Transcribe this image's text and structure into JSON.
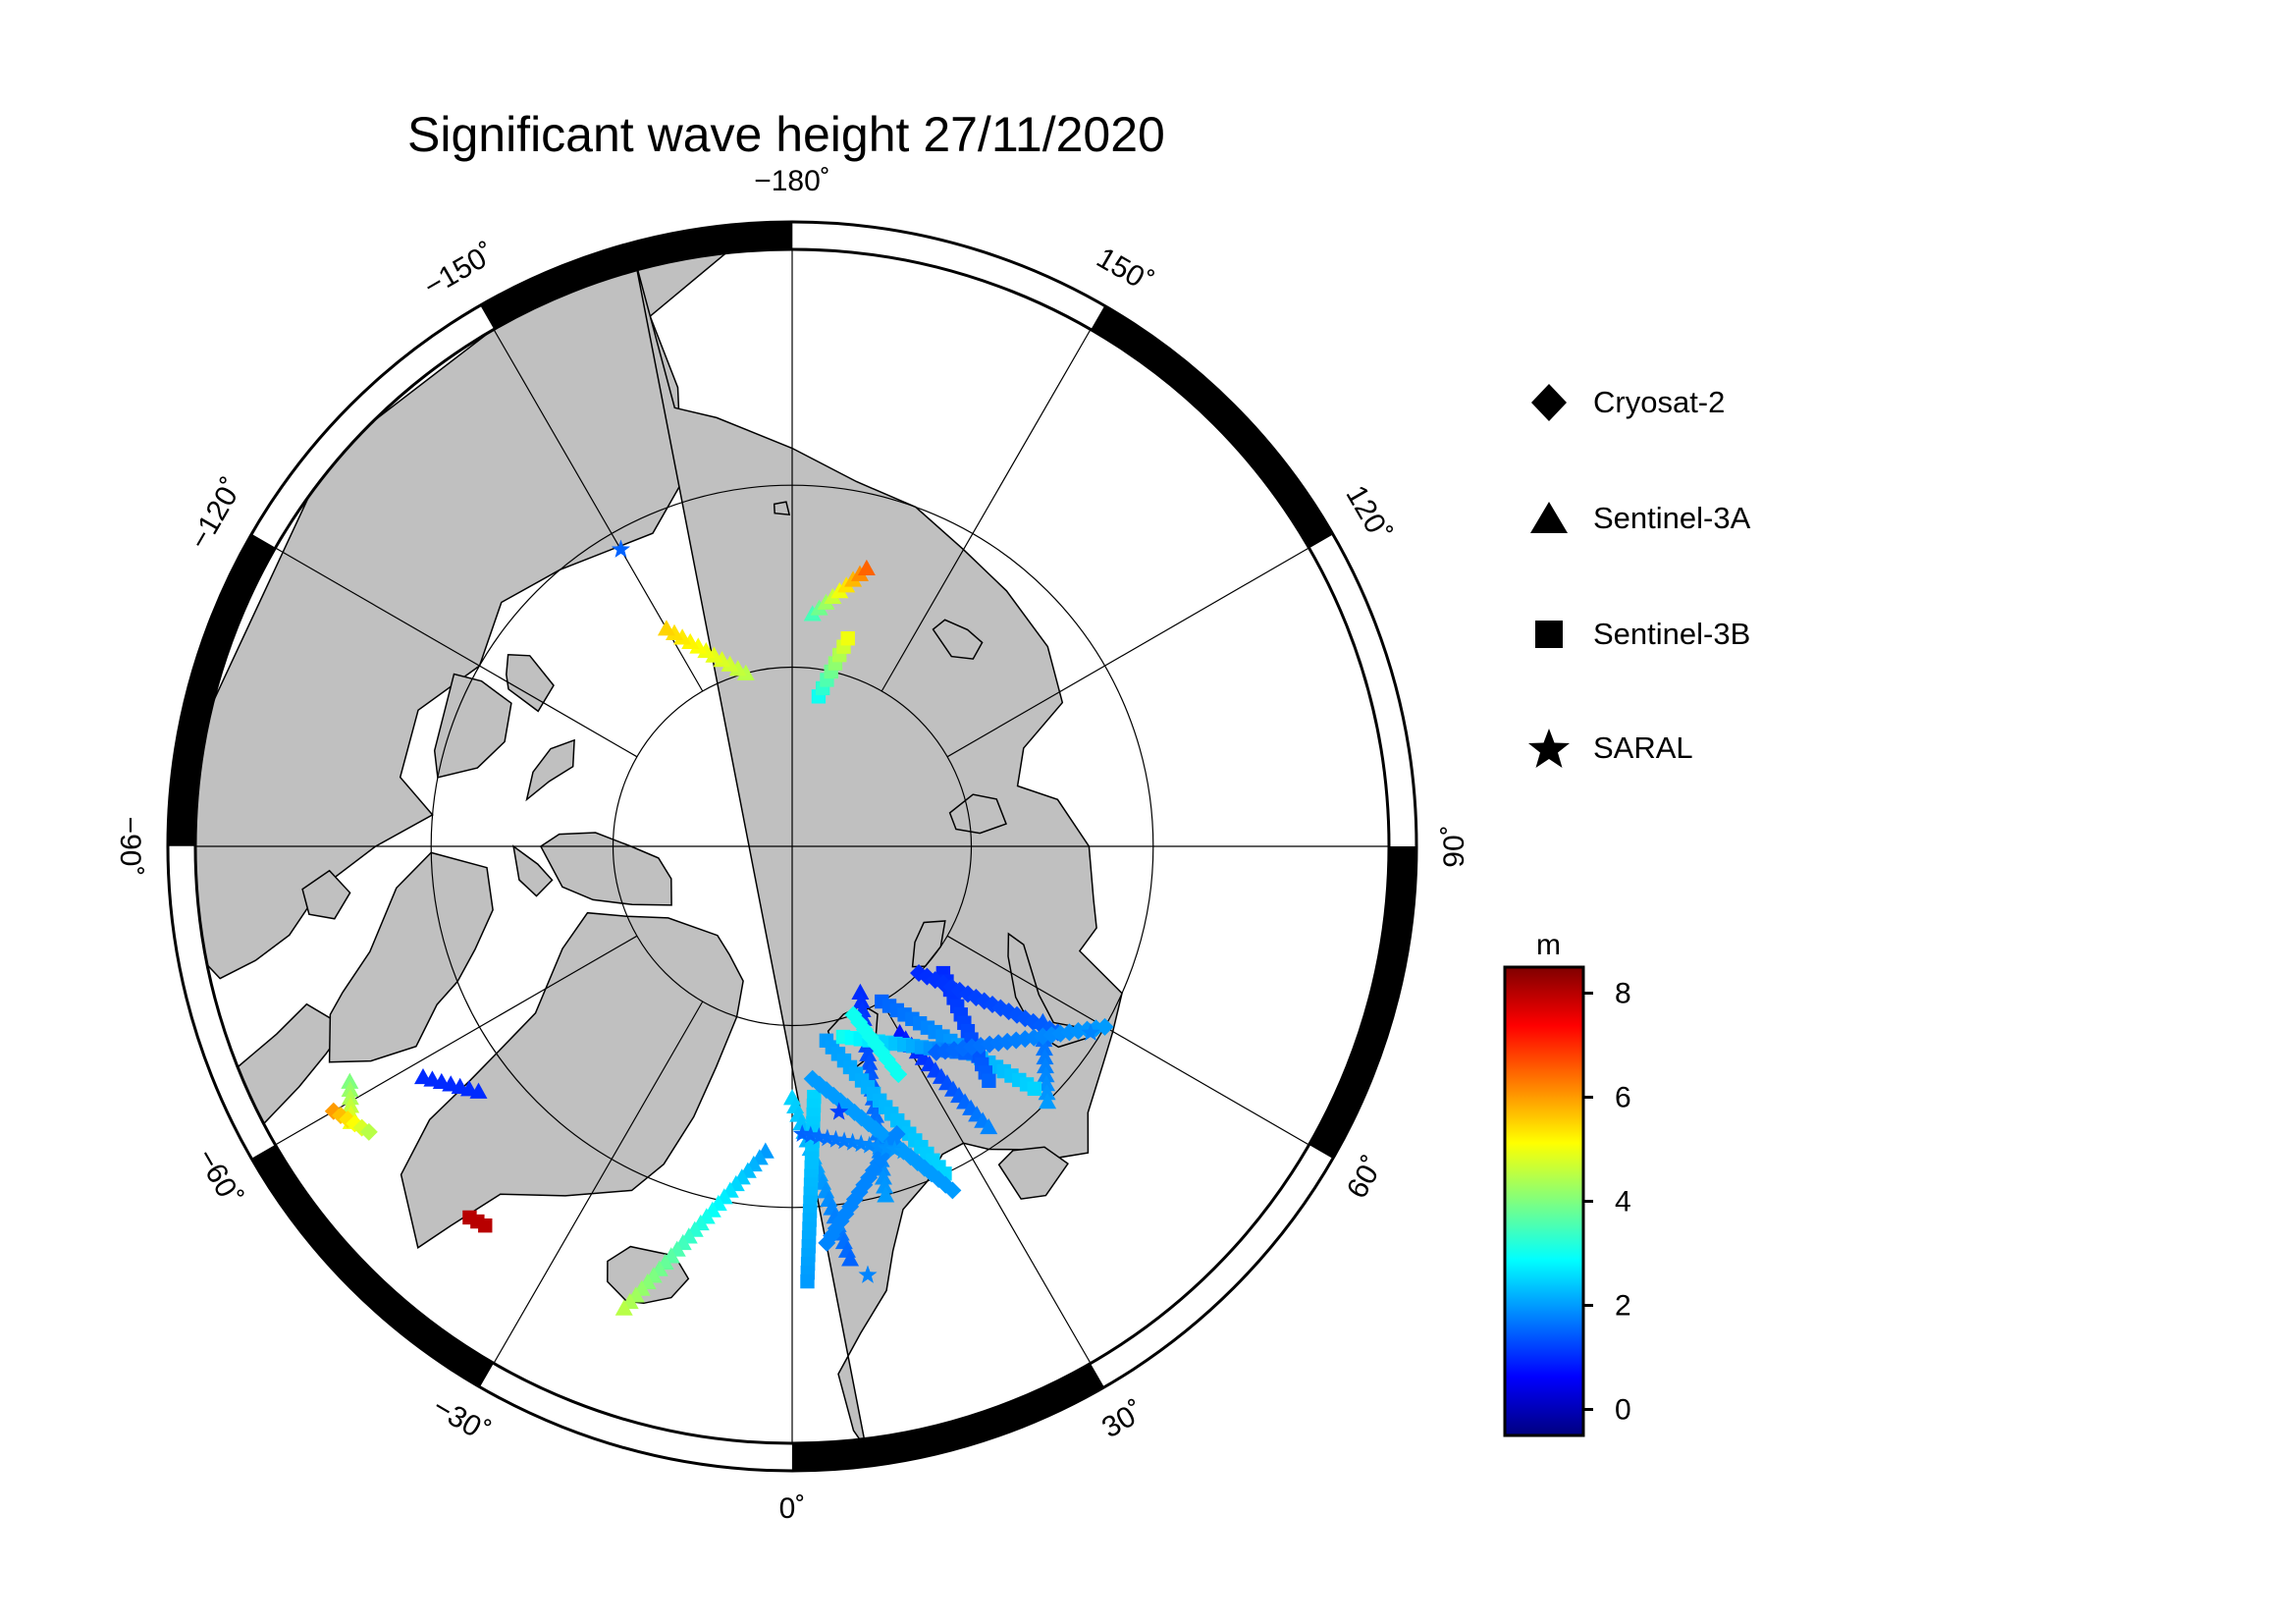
{
  "title": "Significant wave height 27/11/2020",
  "longitude_labels": [
    {
      "deg": 180,
      "text": "−180˚"
    },
    {
      "deg": 150,
      "text": "150˚"
    },
    {
      "deg": 120,
      "text": "120˚"
    },
    {
      "deg": 90,
      "text": "90˚"
    },
    {
      "deg": 60,
      "text": "60˚"
    },
    {
      "deg": 30,
      "text": "30˚"
    },
    {
      "deg": 0,
      "text": "0˚"
    },
    {
      "deg": -30,
      "text": "−30˚"
    },
    {
      "deg": -60,
      "text": "−60˚"
    },
    {
      "deg": -90,
      "text": "−90˚"
    },
    {
      "deg": -120,
      "text": "−120˚"
    },
    {
      "deg": -150,
      "text": "−150˚"
    }
  ],
  "legend": {
    "items": [
      {
        "label": "Cryosat-2",
        "marker": "diamond-icon"
      },
      {
        "label": "Sentinel-3A",
        "marker": "triangle-icon"
      },
      {
        "label": "Sentinel-3B",
        "marker": "square-icon"
      },
      {
        "label": "SARAL",
        "marker": "star-icon"
      }
    ]
  },
  "colorbar": {
    "unit": "m",
    "min": -0.5,
    "max": 8.5,
    "ticks": [
      0,
      2,
      4,
      6,
      8
    ],
    "tick_labels": [
      "0",
      "2",
      "4",
      "6",
      "8"
    ],
    "colors": [
      "#00007f",
      "#0000ff",
      "#007fff",
      "#00ffff",
      "#7fff7f",
      "#ffff00",
      "#ff7f00",
      "#ff0000",
      "#7f0000"
    ]
  },
  "chart_data": {
    "type": "scatter",
    "projection": "north polar stereographic",
    "map_colors": {
      "land": "#c0c0c0",
      "ocean": "#ffffff",
      "coastline": "#000000"
    },
    "latitude_circles_deg": [
      80,
      70
    ],
    "meridian_spacing_deg": 30,
    "series": [
      {
        "name": "Sentinel-3A",
        "marker": "triangle",
        "tracks": [
          {
            "from": [
              77.0,
              175.0
            ],
            "to": [
              74.0,
              165.0
            ],
            "swh_from": 3.5,
            "swh_to": 6.5
          },
          {
            "from": [
              80.0,
              -165.0
            ],
            "to": [
              76.0,
              -150.0
            ],
            "swh_from": 4.5,
            "swh_to": 5.5
          },
          {
            "from": [
              81.0,
              25.0
            ],
            "to": [
              70.0,
              15.0
            ],
            "swh_from": 1.0,
            "swh_to": 2.0
          },
          {
            "from": [
              76.0,
              0.0
            ],
            "to": [
              67.0,
              8.0
            ],
            "swh_from": 2.5,
            "swh_to": 1.5
          },
          {
            "from": [
              78.0,
              30.0
            ],
            "to": [
              71.0,
              35.0
            ],
            "swh_from": 0.8,
            "swh_to": 1.8
          },
          {
            "from": [
              73.0,
              55.0
            ],
            "to": [
              70.0,
              45.0
            ],
            "swh_from": 1.5,
            "swh_to": 2.0
          },
          {
            "from": [
              62.5,
              -62.0
            ],
            "to": [
              61.5,
              -58.0
            ],
            "swh_from": 4.0,
            "swh_to": 5.0
          },
          {
            "from": [
              66.0,
              -58.0
            ],
            "to": [
              68.0,
              -52.0
            ],
            "swh_from": 1.0,
            "swh_to": 1.0
          },
          {
            "from": [
              73.0,
              -5.0
            ],
            "to": [
              63.0,
              -20.0
            ],
            "swh_from": 2.0,
            "swh_to": 4.5
          }
        ]
      },
      {
        "name": "Sentinel-3B",
        "marker": "square",
        "tracks": [
          {
            "from": [
              81.5,
              170.0
            ],
            "to": [
              78.0,
              165.0
            ],
            "swh_from": 3.0,
            "swh_to": 5.0
          },
          {
            "from": [
              80.0,
              30.0
            ],
            "to": [
              71.0,
              45.0
            ],
            "swh_from": 1.5,
            "swh_to": 2.5
          },
          {
            "from": [
              79.0,
              10.0
            ],
            "to": [
              70.0,
              25.0
            ],
            "swh_from": 2.0,
            "swh_to": 2.5
          },
          {
            "from": [
              76.0,
              5.0
            ],
            "to": [
              66.0,
              2.0
            ],
            "swh_from": 2.5,
            "swh_to": 2.0
          },
          {
            "from": [
              79.0,
              50.0
            ],
            "to": [
              73.0,
              40.0
            ],
            "swh_from": 1.0,
            "swh_to": 1.5
          },
          {
            "from": [
              79.0,
              15.0
            ],
            "to": [
              75.0,
              40.0
            ],
            "swh_from": 3.0,
            "swh_to": 1.5
          },
          {
            "from": [
              63.0,
              -41.0
            ],
            "to": [
              63.2,
              -39.0
            ],
            "swh_from": 8.0,
            "swh_to": 8.0
          }
        ]
      },
      {
        "name": "Cryosat-2",
        "marker": "diamond",
        "tracks": [
          {
            "from": [
              77.0,
              5.0
            ],
            "to": [
              69.0,
              25.0
            ],
            "swh_from": 2.0,
            "swh_to": 2.0
          },
          {
            "from": [
              73.0,
              20.0
            ],
            "to": [
              68.0,
              5.0
            ],
            "swh_from": 1.8,
            "swh_to": 1.8
          },
          {
            "from": [
              80.0,
              45.0
            ],
            "to": [
              72.0,
              55.0
            ],
            "swh_from": 1.0,
            "swh_to": 1.5
          },
          {
            "from": [
              61.0,
              -60.0
            ],
            "to": [
              62.0,
              -56.0
            ],
            "swh_from": 6.0,
            "swh_to": 4.5
          },
          {
            "from": [
              76.0,
              35.0
            ],
            "to": [
              70.0,
              60.0
            ],
            "swh_from": 1.5,
            "swh_to": 2.0
          },
          {
            "from": [
              80.0,
              20.0
            ],
            "to": [
              76.0,
              25.0
            ],
            "swh_from": 3.0,
            "swh_to": 3.0
          }
        ]
      },
      {
        "name": "SARAL",
        "marker": "star",
        "tracks": [
          {
            "from": [
              71.0,
              -150.0
            ],
            "to": [
              71.0,
              -150.0
            ],
            "swh_from": 1.5,
            "swh_to": 1.5
          },
          {
            "from": [
              74.0,
              2.0
            ],
            "to": [
              72.0,
              20.0
            ],
            "swh_from": 1.5,
            "swh_to": 2.0
          },
          {
            "from": [
              66.0,
              10.0
            ],
            "to": [
              66.0,
              10.0
            ],
            "swh_from": 1.8,
            "swh_to": 1.8
          },
          {
            "from": [
              70.5,
              58.0
            ],
            "to": [
              70.5,
              58.0
            ],
            "swh_from": 1.8,
            "swh_to": 1.8
          },
          {
            "from": [
              75.0,
              10.0
            ],
            "to": [
              75.0,
              10.0
            ],
            "swh_from": 1.2,
            "swh_to": 1.2
          }
        ]
      }
    ]
  }
}
